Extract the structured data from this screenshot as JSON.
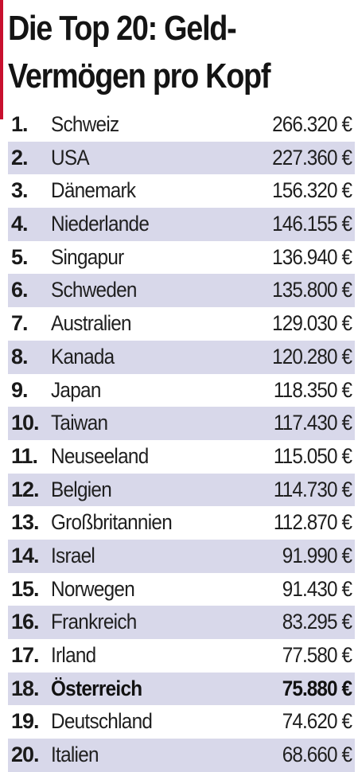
{
  "title_line1": "Die Top 20: Geld-",
  "title_line2": "Vermögen pro Kopf",
  "colors": {
    "accent": "#c8102e",
    "row_alt": "#d8d8ea",
    "text": "#1a1a1a"
  },
  "chart_data": {
    "type": "table",
    "title": "Die Top 20: Geld-Vermögen pro Kopf",
    "highlight_rank": "18.",
    "rows": [
      {
        "rank": "1.",
        "country": "Schweiz",
        "value": "266.320 €"
      },
      {
        "rank": "2.",
        "country": "USA",
        "value": "227.360 €"
      },
      {
        "rank": "3.",
        "country": "Dänemark",
        "value": "156.320 €"
      },
      {
        "rank": "4.",
        "country": "Niederlande",
        "value": "146.155 €"
      },
      {
        "rank": "5.",
        "country": "Singapur",
        "value": "136.940 €"
      },
      {
        "rank": "6.",
        "country": "Schweden",
        "value": "135.800 €"
      },
      {
        "rank": "7.",
        "country": "Australien",
        "value": "129.030 €"
      },
      {
        "rank": "8.",
        "country": "Kanada",
        "value": "120.280 €"
      },
      {
        "rank": "9.",
        "country": "Japan",
        "value": "118.350 €"
      },
      {
        "rank": "10.",
        "country": "Taiwan",
        "value": "117.430 €"
      },
      {
        "rank": "11.",
        "country": "Neuseeland",
        "value": "115.050 €"
      },
      {
        "rank": "12.",
        "country": "Belgien",
        "value": "114.730 €"
      },
      {
        "rank": "13.",
        "country": "Großbritannien",
        "value": "112.870 €"
      },
      {
        "rank": "14.",
        "country": "Israel",
        "value": "91.990 €"
      },
      {
        "rank": "15.",
        "country": "Norwegen",
        "value": "91.430 €"
      },
      {
        "rank": "16.",
        "country": "Frankreich",
        "value": "83.295 €"
      },
      {
        "rank": "17.",
        "country": "Irland",
        "value": "77.580 €"
      },
      {
        "rank": "18.",
        "country": "Österreich",
        "value": "75.880 €"
      },
      {
        "rank": "19.",
        "country": "Deutschland",
        "value": "74.620 €"
      },
      {
        "rank": "20.",
        "country": "Italien",
        "value": "68.660 €"
      }
    ]
  }
}
